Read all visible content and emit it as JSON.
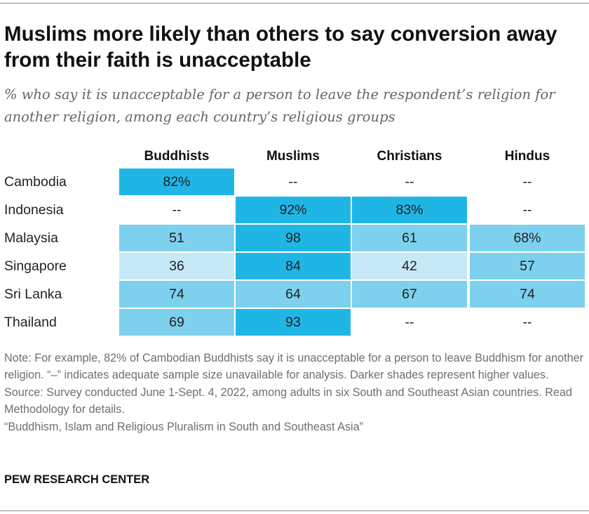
{
  "title": "Muslims more likely than others to say conversion away from their faith is unacceptable",
  "subtitle": "% who say it is unacceptable for a person to leave the respondent’s religion for another religion, among each country’s religious groups",
  "chart_data": {
    "type": "table",
    "title": "Muslims more likely than others to say conversion away from their faith is unacceptable",
    "columns": [
      "Buddhists",
      "Muslims",
      "Christians",
      "Hindus"
    ],
    "rows": [
      {
        "label": "Cambodia",
        "cells": [
          {
            "text": "82%",
            "value": 82
          },
          {
            "text": "--",
            "value": null
          },
          {
            "text": "--",
            "value": null
          },
          {
            "text": "--",
            "value": null
          }
        ]
      },
      {
        "label": "Indonesia",
        "cells": [
          {
            "text": "--",
            "value": null
          },
          {
            "text": "92%",
            "value": 92
          },
          {
            "text": "83%",
            "value": 83
          },
          {
            "text": "--",
            "value": null
          }
        ]
      },
      {
        "label": "Malaysia",
        "cells": [
          {
            "text": "51",
            "value": 51
          },
          {
            "text": "98",
            "value": 98
          },
          {
            "text": "61",
            "value": 61
          },
          {
            "text": "68%",
            "value": 68
          }
        ]
      },
      {
        "label": "Singapore",
        "cells": [
          {
            "text": "36",
            "value": 36
          },
          {
            "text": "84",
            "value": 84
          },
          {
            "text": "42",
            "value": 42
          },
          {
            "text": "57",
            "value": 57
          }
        ]
      },
      {
        "label": "Sri Lanka",
        "cells": [
          {
            "text": "74",
            "value": 74
          },
          {
            "text": "64",
            "value": 64
          },
          {
            "text": "67",
            "value": 67
          },
          {
            "text": "74",
            "value": 74
          }
        ]
      },
      {
        "label": "Thailand",
        "cells": [
          {
            "text": "69",
            "value": 69
          },
          {
            "text": "93",
            "value": 93
          },
          {
            "text": "--",
            "value": null
          },
          {
            "text": "--",
            "value": null
          }
        ]
      }
    ],
    "color_scale": {
      "light": "#c6e9f8",
      "mid": "#7dd0ee",
      "dark": "#1fb6e6",
      "darkest": "#1aa9de"
    }
  },
  "notes": {
    "note": "Note: For example, 82% of Cambodian Buddhists say it is unacceptable for a person to leave Buddhism for another religion. “–” indicates adequate sample size unavailable for analysis. Darker shades represent higher values.",
    "source": "Source: Survey conducted June 1-Sept. 4, 2022, among adults in six South and Southeast Asian countries. Read Methodology for details.",
    "report": "“Buddhism, Islam and Religious Pluralism in South and Southeast Asia”"
  },
  "logo": "PEW RESEARCH CENTER"
}
